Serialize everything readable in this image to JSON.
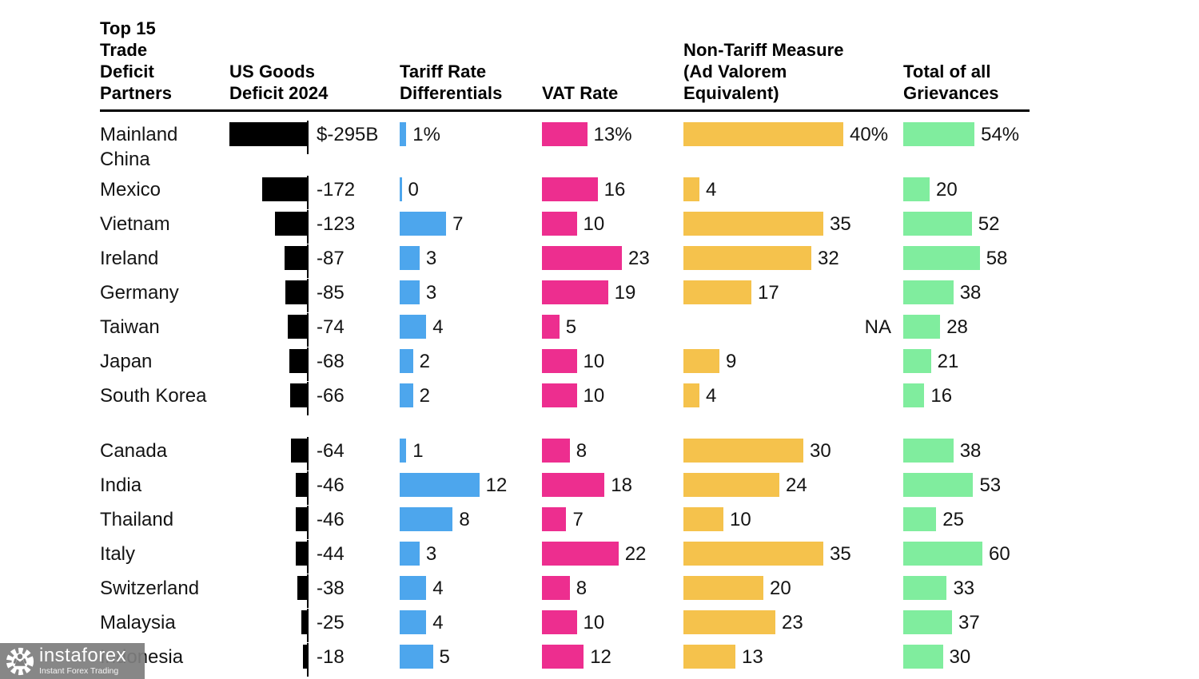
{
  "headers": {
    "partners": "Top 15\nTrade\nDeficit\nPartners",
    "deficit": "US Goods\nDeficit 2024",
    "tariff": "Tariff Rate\nDifferentials",
    "vat": "VAT Rate",
    "ntm": "Non-Tariff Measure\n(Ad Valorem\nEquivalent)",
    "total": "Total of all\nGrievances"
  },
  "colors": {
    "deficit_black": "#000000",
    "tariff_blue": "#4DA6ED",
    "vat_pink": "#ED2E8F",
    "ntm_orange": "#F5C24C",
    "total_green": "#80ED9E"
  },
  "na_label": "NA",
  "watermark": {
    "brand": "instaforex",
    "tagline": "Instant Forex Trading",
    "logo": "gear-person-icon"
  },
  "rows": [
    {
      "country": "Mainland China",
      "two_line": true,
      "deficit": 295,
      "deficit_label": "$-295B",
      "tariff": 1,
      "tariff_label": "1%",
      "vat": 13,
      "vat_label": "13%",
      "ntm": 40,
      "ntm_label": "40%",
      "total": 54,
      "total_label": "54%"
    },
    {
      "country": "Mexico",
      "two_line": false,
      "deficit": 172,
      "deficit_label": "-172",
      "tariff": 0,
      "tariff_label": "0",
      "vat": 16,
      "vat_label": "16",
      "ntm": 4,
      "ntm_label": "4",
      "total": 20,
      "total_label": "20"
    },
    {
      "country": "Vietnam",
      "two_line": false,
      "deficit": 123,
      "deficit_label": "-123",
      "tariff": 7,
      "tariff_label": "7",
      "vat": 10,
      "vat_label": "10",
      "ntm": 35,
      "ntm_label": "35",
      "total": 52,
      "total_label": "52"
    },
    {
      "country": "Ireland",
      "two_line": false,
      "deficit": 87,
      "deficit_label": "-87",
      "tariff": 3,
      "tariff_label": "3",
      "vat": 23,
      "vat_label": "23",
      "ntm": 32,
      "ntm_label": "32",
      "total": 58,
      "total_label": "58"
    },
    {
      "country": "Germany",
      "two_line": false,
      "deficit": 85,
      "deficit_label": "-85",
      "tariff": 3,
      "tariff_label": "3",
      "vat": 19,
      "vat_label": "19",
      "ntm": 17,
      "ntm_label": "17",
      "total": 38,
      "total_label": "38"
    },
    {
      "country": "Taiwan",
      "two_line": false,
      "deficit": 74,
      "deficit_label": "-74",
      "tariff": 4,
      "tariff_label": "4",
      "vat": 5,
      "vat_label": "5",
      "ntm": null,
      "ntm_label": "NA",
      "total": 28,
      "total_label": "28"
    },
    {
      "country": "Japan",
      "two_line": false,
      "deficit": 68,
      "deficit_label": "-68",
      "tariff": 2,
      "tariff_label": "2",
      "vat": 10,
      "vat_label": "10",
      "ntm": 9,
      "ntm_label": "9",
      "total": 21,
      "total_label": "21"
    },
    {
      "country": "South Korea",
      "two_line": true,
      "deficit": 66,
      "deficit_label": "-66",
      "tariff": 2,
      "tariff_label": "2",
      "vat": 10,
      "vat_label": "10",
      "ntm": 4,
      "ntm_label": "4",
      "total": 16,
      "total_label": "16"
    },
    {
      "country": "Canada",
      "two_line": false,
      "deficit": 64,
      "deficit_label": "-64",
      "tariff": 1,
      "tariff_label": "1",
      "vat": 8,
      "vat_label": "8",
      "ntm": 30,
      "ntm_label": "30",
      "total": 38,
      "total_label": "38"
    },
    {
      "country": "India",
      "two_line": false,
      "deficit": 46,
      "deficit_label": "-46",
      "tariff": 12,
      "tariff_label": "12",
      "vat": 18,
      "vat_label": "18",
      "ntm": 24,
      "ntm_label": "24",
      "total": 53,
      "total_label": "53"
    },
    {
      "country": "Thailand",
      "two_line": false,
      "deficit": 46,
      "deficit_label": "-46",
      "tariff": 8,
      "tariff_label": "8",
      "vat": 7,
      "vat_label": "7",
      "ntm": 10,
      "ntm_label": "10",
      "total": 25,
      "total_label": "25"
    },
    {
      "country": "Italy",
      "two_line": false,
      "deficit": 44,
      "deficit_label": "-44",
      "tariff": 3,
      "tariff_label": "3",
      "vat": 22,
      "vat_label": "22",
      "ntm": 35,
      "ntm_label": "35",
      "total": 60,
      "total_label": "60"
    },
    {
      "country": "Switzerland",
      "two_line": false,
      "deficit": 38,
      "deficit_label": "-38",
      "tariff": 4,
      "tariff_label": "4",
      "vat": 8,
      "vat_label": "8",
      "ntm": 20,
      "ntm_label": "20",
      "total": 33,
      "total_label": "33"
    },
    {
      "country": "Malaysia",
      "two_line": false,
      "deficit": 25,
      "deficit_label": "-25",
      "tariff": 4,
      "tariff_label": "4",
      "vat": 10,
      "vat_label": "10",
      "ntm": 23,
      "ntm_label": "23",
      "total": 37,
      "total_label": "37"
    },
    {
      "country": "Indonesia",
      "two_line": false,
      "deficit": 18,
      "deficit_label": "-18",
      "tariff": 5,
      "tariff_label": "5",
      "vat": 12,
      "vat_label": "12",
      "ntm": 13,
      "ntm_label": "13",
      "total": 30,
      "total_label": "30"
    }
  ],
  "chart_data": {
    "type": "bar",
    "orientation": "horizontal",
    "title": "Top 15 Trade Deficit Partners",
    "categories": [
      "Mainland China",
      "Mexico",
      "Vietnam",
      "Ireland",
      "Germany",
      "Taiwan",
      "Japan",
      "South Korea",
      "Canada",
      "India",
      "Thailand",
      "Italy",
      "Switzerland",
      "Malaysia",
      "Indonesia"
    ],
    "series": [
      {
        "name": "US Goods Deficit 2024 ($B)",
        "color": "#000000",
        "values": [
          -295,
          -172,
          -123,
          -87,
          -85,
          -74,
          -68,
          -66,
          -64,
          -46,
          -46,
          -44,
          -38,
          -25,
          -18
        ]
      },
      {
        "name": "Tariff Rate Differentials (%)",
        "color": "#4DA6ED",
        "values": [
          1,
          0,
          7,
          3,
          3,
          4,
          2,
          2,
          1,
          12,
          8,
          3,
          4,
          4,
          5
        ]
      },
      {
        "name": "VAT Rate (%)",
        "color": "#ED2E8F",
        "values": [
          13,
          16,
          10,
          23,
          19,
          5,
          10,
          10,
          8,
          18,
          7,
          22,
          8,
          10,
          12
        ]
      },
      {
        "name": "Non-Tariff Measure (Ad Valorem Equivalent) (%)",
        "color": "#F5C24C",
        "values": [
          40,
          4,
          35,
          32,
          17,
          null,
          9,
          4,
          30,
          24,
          10,
          35,
          20,
          23,
          13
        ]
      },
      {
        "name": "Total of all Grievances (%)",
        "color": "#80ED9E",
        "values": [
          54,
          20,
          52,
          58,
          38,
          28,
          21,
          16,
          38,
          53,
          25,
          60,
          33,
          37,
          30
        ]
      }
    ],
    "value_labels": true,
    "grid": false,
    "legend_position": "none",
    "na_label": "NA"
  }
}
